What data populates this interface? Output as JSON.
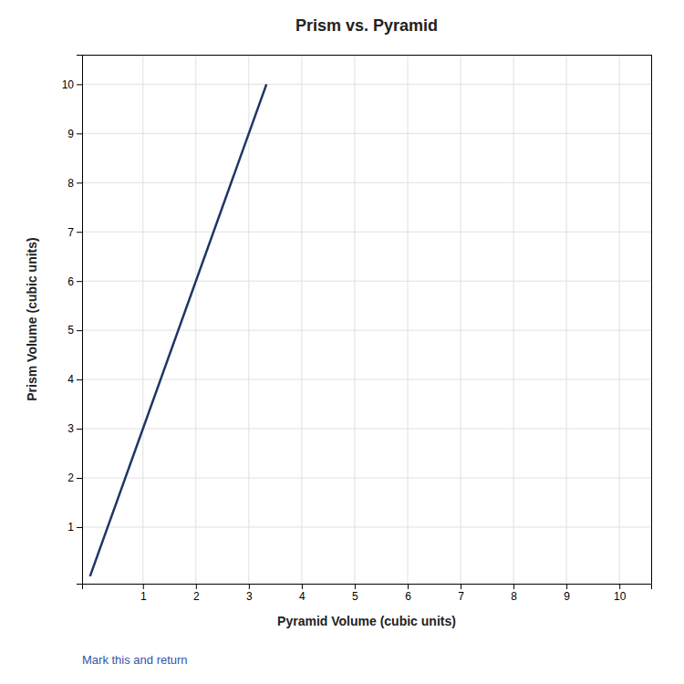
{
  "chart_data": {
    "type": "line",
    "title": "Prism vs. Pyramid",
    "xlabel": "Pyramid Volume (cubic units)",
    "ylabel": "Prism Volume (cubic units)",
    "x": [
      0,
      3.333
    ],
    "values": [
      0,
      10
    ],
    "color": "#1f3566",
    "xlim": [
      -0.15,
      10.6
    ],
    "ylim": [
      -0.15,
      10.6
    ],
    "xticks": [
      1,
      2,
      3,
      4,
      5,
      6,
      7,
      8,
      9,
      10
    ],
    "yticks": [
      1,
      2,
      3,
      4,
      5,
      6,
      7,
      8,
      9,
      10
    ],
    "grid": true,
    "annotations": [
      {
        "text": "Mark this and return",
        "color": "#3355aa"
      }
    ]
  }
}
